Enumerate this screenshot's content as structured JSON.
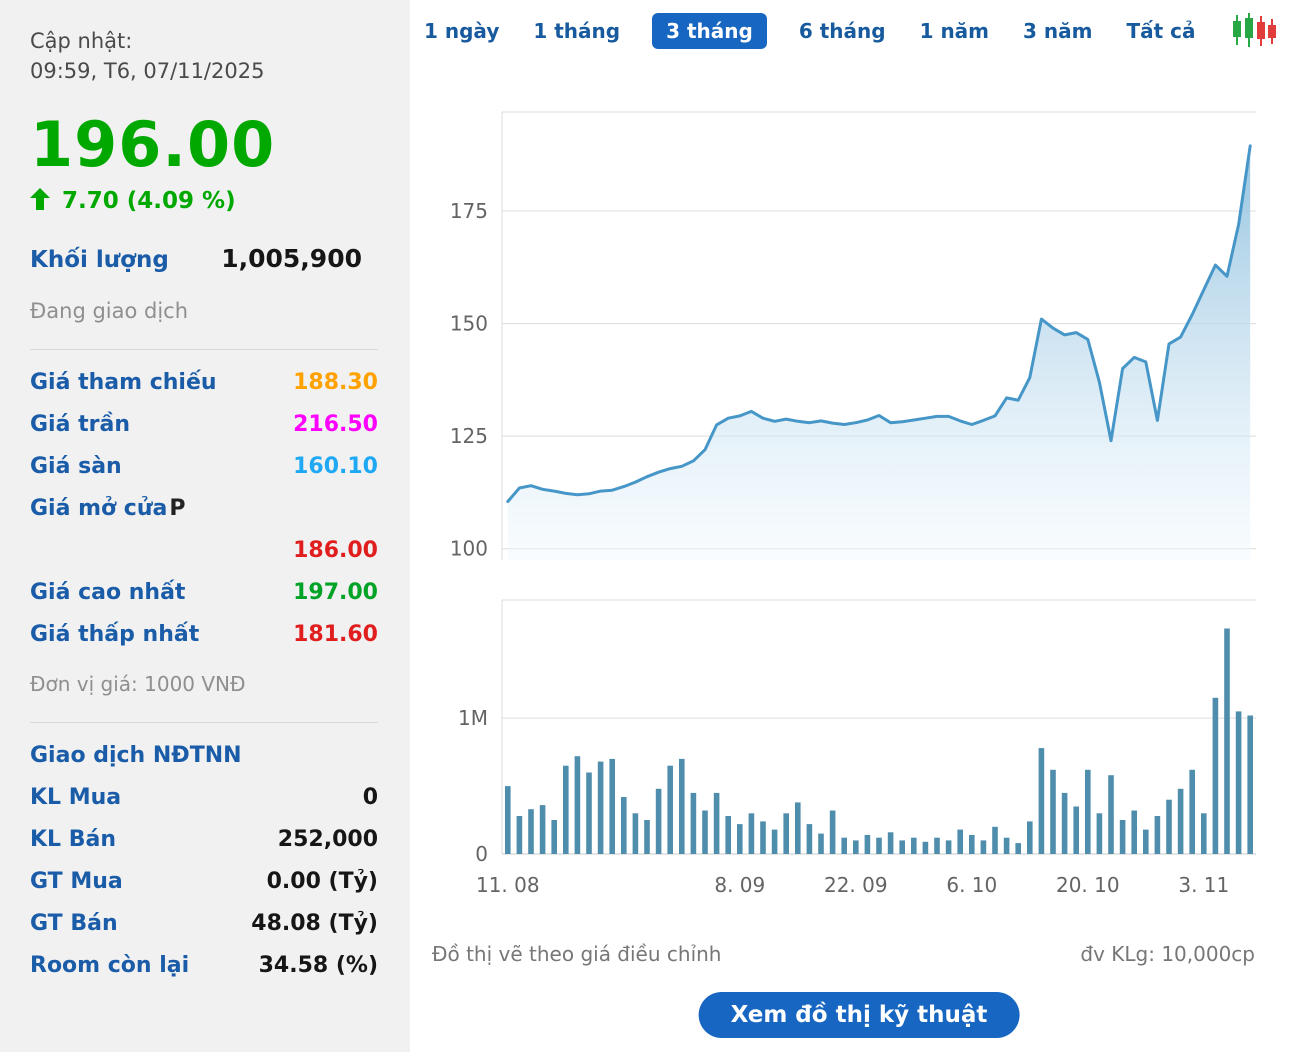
{
  "sidebar": {
    "updated_label": "Cập nhật:",
    "updated_time": "09:59, T6, 07/11/2025",
    "price": "196.00",
    "change": "7.70 (4.09 %)",
    "volume_label": "Khối lượng",
    "volume_value": "1,005,900",
    "session_status": "Đang giao dịch",
    "price_rows": [
      {
        "label": "Giá tham chiếu",
        "value": "188.30",
        "color": "#ffa200"
      },
      {
        "label": "Giá trần",
        "value": "216.50",
        "color": "#ff00ff"
      },
      {
        "label": "Giá sàn",
        "value": "160.10",
        "color": "#1fa9f4"
      },
      {
        "label": "Giá mở cửa",
        "suffix": "P",
        "value": "186.00",
        "color": "#e01e1e"
      },
      {
        "label": "Giá cao nhất",
        "value": "197.00",
        "color": "#00a325"
      },
      {
        "label": "Giá thấp nhất",
        "value": "181.60",
        "color": "#e01e1e"
      }
    ],
    "unit_note": "Đơn vị giá: 1000 VNĐ",
    "foreign_title": "Giao dịch NĐTNN",
    "foreign_rows": [
      {
        "label": "KL Mua",
        "value": "0"
      },
      {
        "label": "KL Bán",
        "value": "252,000"
      },
      {
        "label": "GT Mua",
        "value": "0.00 (Tỷ)"
      },
      {
        "label": "GT Bán",
        "value": "48.08 (Tỷ)"
      },
      {
        "label": "Room còn lại",
        "value": "34.58 (%)"
      }
    ]
  },
  "tabs": [
    {
      "label": "1 ngày",
      "active": false
    },
    {
      "label": "1 tháng",
      "active": false
    },
    {
      "label": "3 tháng",
      "active": true
    },
    {
      "label": "6 tháng",
      "active": false
    },
    {
      "label": "1 năm",
      "active": false
    },
    {
      "label": "3 năm",
      "active": false
    },
    {
      "label": "Tất cả",
      "active": false
    }
  ],
  "chart_footer": {
    "left": "Đồ thị vẽ theo giá điều chỉnh",
    "right": "đv KLg: 10,000cp"
  },
  "button": {
    "label": "Xem đồ thị kỹ thuật"
  },
  "theme": {
    "accent_blue": "#1766c1",
    "label_blue": "#1a5ca8",
    "price_green": "#00a800",
    "line_blue": "#4696c8",
    "bar_blue": "#4f8dad"
  },
  "chart_data": [
    {
      "type": "area",
      "title": "Giá điều chỉnh (3 tháng)",
      "x_labels": [
        "11. 08",
        "8. 09",
        "22. 09",
        "6. 10",
        "20. 10",
        "3. 11"
      ],
      "x_label_indices": [
        0,
        20,
        30,
        40,
        50,
        60
      ],
      "y_ticks": [
        100,
        125,
        150,
        175
      ],
      "ylim": [
        97.5,
        197
      ],
      "grid": true,
      "line_color": "#4696c8",
      "fill_top": "#8fc0de",
      "fill_bottom": "#eef7fd",
      "series": [
        {
          "name": "Giá điều chỉnh",
          "values": [
            110.5,
            113.5,
            114,
            113.2,
            112.8,
            112.3,
            112,
            112.2,
            112.8,
            113,
            113.8,
            114.8,
            116,
            117,
            117.8,
            118.3,
            119.5,
            122,
            127.5,
            129,
            129.5,
            130.5,
            129,
            128.3,
            128.8,
            128.3,
            128,
            128.4,
            127.9,
            127.6,
            128,
            128.6,
            129.6,
            128,
            128.2,
            128.6,
            129,
            129.4,
            129.4,
            128.4,
            127.6,
            128.5,
            129.5,
            133.5,
            133,
            138,
            151,
            149,
            147.5,
            148,
            146.5,
            137,
            124,
            140,
            142.5,
            141.5,
            128.5,
            145.5,
            147,
            152,
            157.5,
            163,
            160.5,
            172,
            189.5
          ]
        }
      ]
    },
    {
      "type": "bar",
      "title": "Khối lượng",
      "y_ticks": [
        1000000,
        0
      ],
      "y_tick_labels": [
        "1M",
        "0"
      ],
      "ylim": [
        0,
        1870000
      ],
      "bar_color": "#4f8dad",
      "values": [
        500000,
        280000,
        330000,
        360000,
        250000,
        650000,
        720000,
        600000,
        680000,
        700000,
        420000,
        300000,
        250000,
        480000,
        650000,
        700000,
        450000,
        320000,
        450000,
        280000,
        220000,
        300000,
        240000,
        180000,
        300000,
        380000,
        220000,
        150000,
        320000,
        120000,
        100000,
        140000,
        120000,
        160000,
        100000,
        120000,
        90000,
        120000,
        100000,
        180000,
        140000,
        100000,
        200000,
        120000,
        80000,
        240000,
        780000,
        620000,
        450000,
        350000,
        620000,
        300000,
        580000,
        250000,
        320000,
        180000,
        280000,
        400000,
        480000,
        620000,
        300000,
        1150000,
        1660000,
        1050000,
        1020000
      ]
    }
  ]
}
